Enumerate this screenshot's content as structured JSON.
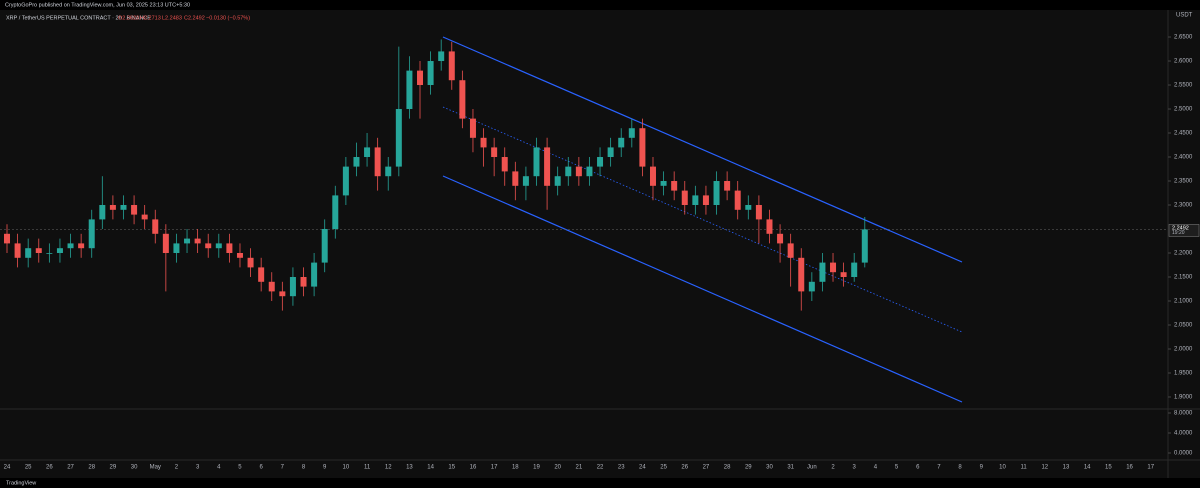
{
  "header": {
    "publisher": "CryptoGoPro published on TradingView.com, Jun 03, 2025 23:13 UTC+5:30",
    "footer": "TradingView"
  },
  "chart_data": {
    "type": "candlestick",
    "symbol": "XRP / TetherUS PERPETUAL CONTRACT · 2h · BINANCE",
    "ohlc_label": {
      "open": "O2.2623",
      "high": "H2.2713",
      "low": "L2.2483",
      "close": "C2.2492",
      "change": "−0.0130 (−0.57%)"
    },
    "currency": "USDT",
    "last_price": {
      "value": 2.2492,
      "label": "2.2492"
    },
    "countdown": "19:20",
    "up_color": "#26a69a",
    "down_color": "#ef5350",
    "xticks": [
      "24",
      "25",
      "26",
      "27",
      "28",
      "29",
      "30",
      "May",
      "2",
      "3",
      "4",
      "5",
      "6",
      "7",
      "8",
      "9",
      "10",
      "11",
      "12",
      "13",
      "14",
      "15",
      "16",
      "17",
      "18",
      "19",
      "20",
      "21",
      "22",
      "23",
      "24",
      "25",
      "26",
      "27",
      "28",
      "29",
      "30",
      "31",
      "Jun",
      "2",
      "3",
      "4",
      "5",
      "6",
      "7",
      "8",
      "9",
      "10",
      "11",
      "12",
      "13",
      "14",
      "15",
      "16",
      "17"
    ],
    "open": [
      2.24,
      2.22,
      2.19,
      2.21,
      2.2,
      2.2,
      2.21,
      2.22,
      2.21,
      2.27,
      2.3,
      2.29,
      2.3,
      2.28,
      2.27,
      2.24,
      2.2,
      2.22,
      2.23,
      2.22,
      2.21,
      2.22,
      2.2,
      2.19,
      2.17,
      2.14,
      2.12,
      2.11,
      2.15,
      2.13,
      2.18,
      2.25,
      2.32,
      2.38,
      2.4,
      2.42,
      2.36,
      2.38,
      2.5,
      2.58,
      2.55,
      2.6,
      2.62,
      2.56,
      2.48,
      2.44,
      2.42,
      2.4,
      2.37,
      2.34,
      2.36,
      2.42,
      2.34,
      2.36,
      2.38,
      2.36,
      2.38,
      2.4,
      2.42,
      2.44,
      2.46,
      2.38,
      2.34,
      2.35,
      2.33,
      2.3,
      2.32,
      2.3,
      2.35,
      2.33,
      2.29,
      2.3,
      2.27,
      2.24,
      2.22,
      2.19,
      2.12,
      2.14,
      2.18,
      2.16,
      2.15,
      2.18
    ],
    "high": [
      2.26,
      2.24,
      2.23,
      2.23,
      2.22,
      2.23,
      2.24,
      2.24,
      2.29,
      2.36,
      2.32,
      2.32,
      2.32,
      2.3,
      2.29,
      2.26,
      2.24,
      2.25,
      2.25,
      2.24,
      2.24,
      2.24,
      2.22,
      2.21,
      2.19,
      2.16,
      2.14,
      2.17,
      2.17,
      2.2,
      2.27,
      2.34,
      2.4,
      2.43,
      2.45,
      2.44,
      2.4,
      2.63,
      2.61,
      2.6,
      2.62,
      2.645,
      2.64,
      2.58,
      2.5,
      2.46,
      2.44,
      2.42,
      2.39,
      2.38,
      2.44,
      2.44,
      2.38,
      2.4,
      2.4,
      2.4,
      2.42,
      2.44,
      2.46,
      2.48,
      2.48,
      2.4,
      2.37,
      2.37,
      2.35,
      2.34,
      2.34,
      2.37,
      2.37,
      2.35,
      2.32,
      2.32,
      2.29,
      2.26,
      2.24,
      2.21,
      2.16,
      2.2,
      2.2,
      2.18,
      2.2,
      2.275
    ],
    "low": [
      2.2,
      2.17,
      2.17,
      2.18,
      2.18,
      2.18,
      2.19,
      2.19,
      2.19,
      2.25,
      2.27,
      2.27,
      2.26,
      2.25,
      2.22,
      2.12,
      2.18,
      2.2,
      2.2,
      2.19,
      2.19,
      2.18,
      2.17,
      2.15,
      2.12,
      2.1,
      2.08,
      2.09,
      2.11,
      2.11,
      2.16,
      2.23,
      2.3,
      2.36,
      2.38,
      2.33,
      2.33,
      2.36,
      2.48,
      2.48,
      2.53,
      2.58,
      2.54,
      2.46,
      2.41,
      2.38,
      2.36,
      2.34,
      2.31,
      2.31,
      2.34,
      2.29,
      2.32,
      2.34,
      2.34,
      2.34,
      2.36,
      2.38,
      2.4,
      2.42,
      2.36,
      2.31,
      2.32,
      2.31,
      2.28,
      2.28,
      2.28,
      2.28,
      2.31,
      2.27,
      2.27,
      2.22,
      2.22,
      2.18,
      2.13,
      2.08,
      2.1,
      2.12,
      2.14,
      2.13,
      2.14,
      2.17
    ],
    "close": [
      2.22,
      2.19,
      2.21,
      2.2,
      2.2,
      2.21,
      2.22,
      2.21,
      2.27,
      2.3,
      2.29,
      2.3,
      2.28,
      2.27,
      2.24,
      2.2,
      2.22,
      2.23,
      2.22,
      2.21,
      2.22,
      2.2,
      2.19,
      2.17,
      2.14,
      2.12,
      2.11,
      2.15,
      2.13,
      2.18,
      2.25,
      2.32,
      2.38,
      2.4,
      2.42,
      2.36,
      2.38,
      2.5,
      2.58,
      2.55,
      2.6,
      2.62,
      2.56,
      2.48,
      2.44,
      2.42,
      2.4,
      2.37,
      2.34,
      2.36,
      2.42,
      2.34,
      2.36,
      2.38,
      2.36,
      2.38,
      2.4,
      2.42,
      2.44,
      2.46,
      2.38,
      2.34,
      2.35,
      2.33,
      2.3,
      2.32,
      2.3,
      2.35,
      2.33,
      2.29,
      2.3,
      2.27,
      2.24,
      2.22,
      2.19,
      2.12,
      2.14,
      2.18,
      2.16,
      2.15,
      2.18,
      2.2492
    ],
    "ylim": [
      1.8833,
      2.7063
    ],
    "yticks": [
      {
        "value": 1.9,
        "label": "1.9000"
      },
      {
        "value": 1.95,
        "label": "1.9500"
      },
      {
        "value": 2.0,
        "label": "2.0000"
      },
      {
        "value": 2.05,
        "label": "2.0500"
      },
      {
        "value": 2.1,
        "label": "2.1000"
      },
      {
        "value": 2.15,
        "label": "2.1500"
      },
      {
        "value": 2.2,
        "label": "2.2000"
      },
      {
        "value": 2.3,
        "label": "2.3000"
      },
      {
        "value": 2.35,
        "label": "2.3500"
      },
      {
        "value": 2.4,
        "label": "2.4000"
      },
      {
        "value": 2.45,
        "label": "2.4500"
      },
      {
        "value": 2.5,
        "label": "2.5000"
      },
      {
        "value": 2.55,
        "label": "2.5500"
      },
      {
        "value": 2.6,
        "label": "2.6000"
      },
      {
        "value": 2.65,
        "label": "2.6500"
      }
    ],
    "lower_pane": {
      "ylim": [
        -1,
        8.6
      ],
      "yticks": [
        {
          "value": 0,
          "label": "0.0000"
        },
        {
          "value": 4,
          "label": "4.0000"
        },
        {
          "value": 8,
          "label": "8.0000"
        }
      ]
    }
  }
}
